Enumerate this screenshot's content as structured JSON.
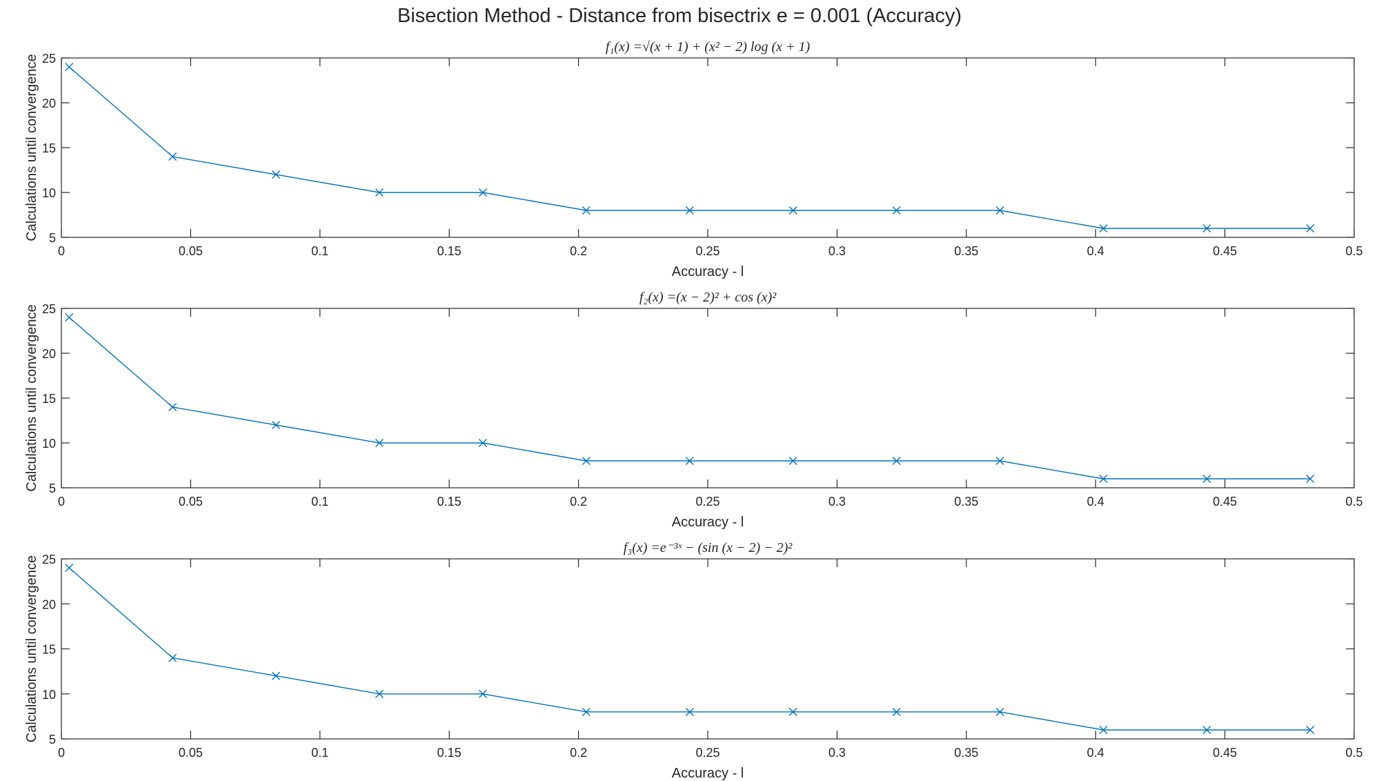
{
  "figure": {
    "suptitle": "Bisection Method - Distance from bisectrix e =  0.001 (Accuracy)"
  },
  "chart_data": [
    {
      "type": "line",
      "title": "f₁(x) =√(x + 1) + (x² − 2) log (x + 1)",
      "xlabel": "Accuracy - l",
      "ylabel": "Calculations until convergence",
      "xlim": [
        0,
        0.5
      ],
      "ylim": [
        5,
        25
      ],
      "xticks": [
        0,
        0.05,
        0.1,
        0.15,
        0.2,
        0.25,
        0.3,
        0.35,
        0.4,
        0.45,
        0.5
      ],
      "xtick_labels": [
        "0",
        "0.05",
        "0.1",
        "0.15",
        "0.2",
        "0.25",
        "0.3",
        "0.35",
        "0.4",
        "0.45",
        "0.5"
      ],
      "yticks": [
        5,
        10,
        15,
        20,
        25
      ],
      "ytick_labels": [
        "5",
        "10",
        "15",
        "20",
        "25"
      ],
      "grid": false,
      "marker": "x",
      "color": "#0072BD",
      "x": [
        0.003,
        0.043,
        0.083,
        0.123,
        0.163,
        0.203,
        0.243,
        0.283,
        0.323,
        0.363,
        0.403,
        0.443,
        0.483
      ],
      "y": [
        24,
        14,
        12,
        10,
        10,
        8,
        8,
        8,
        8,
        8,
        6,
        6,
        6
      ]
    },
    {
      "type": "line",
      "title": "f₂(x) =(x − 2)² + cos (x)²",
      "xlabel": "Accuracy - l",
      "ylabel": "Calculations until convergence",
      "xlim": [
        0,
        0.5
      ],
      "ylim": [
        5,
        25
      ],
      "xticks": [
        0,
        0.05,
        0.1,
        0.15,
        0.2,
        0.25,
        0.3,
        0.35,
        0.4,
        0.45,
        0.5
      ],
      "xtick_labels": [
        "0",
        "0.05",
        "0.1",
        "0.15",
        "0.2",
        "0.25",
        "0.3",
        "0.35",
        "0.4",
        "0.45",
        "0.5"
      ],
      "yticks": [
        5,
        10,
        15,
        20,
        25
      ],
      "ytick_labels": [
        "5",
        "10",
        "15",
        "20",
        "25"
      ],
      "grid": false,
      "marker": "x",
      "color": "#0072BD",
      "x": [
        0.003,
        0.043,
        0.083,
        0.123,
        0.163,
        0.203,
        0.243,
        0.283,
        0.323,
        0.363,
        0.403,
        0.443,
        0.483
      ],
      "y": [
        24,
        14,
        12,
        10,
        10,
        8,
        8,
        8,
        8,
        8,
        6,
        6,
        6
      ]
    },
    {
      "type": "line",
      "title": "f₃(x) =e⁻³ˣ − (sin (x − 2) − 2)²",
      "xlabel": "Accuracy - l",
      "ylabel": "Calculations until convergence",
      "xlim": [
        0,
        0.5
      ],
      "ylim": [
        5,
        25
      ],
      "xticks": [
        0,
        0.05,
        0.1,
        0.15,
        0.2,
        0.25,
        0.3,
        0.35,
        0.4,
        0.45,
        0.5
      ],
      "xtick_labels": [
        "0",
        "0.05",
        "0.1",
        "0.15",
        "0.2",
        "0.25",
        "0.3",
        "0.35",
        "0.4",
        "0.45",
        "0.5"
      ],
      "yticks": [
        5,
        10,
        15,
        20,
        25
      ],
      "ytick_labels": [
        "5",
        "10",
        "15",
        "20",
        "25"
      ],
      "grid": false,
      "marker": "x",
      "color": "#0072BD",
      "x": [
        0.003,
        0.043,
        0.083,
        0.123,
        0.163,
        0.203,
        0.243,
        0.283,
        0.323,
        0.363,
        0.403,
        0.443,
        0.483
      ],
      "y": [
        24,
        14,
        12,
        10,
        10,
        8,
        8,
        8,
        8,
        8,
        6,
        6,
        6
      ]
    }
  ]
}
